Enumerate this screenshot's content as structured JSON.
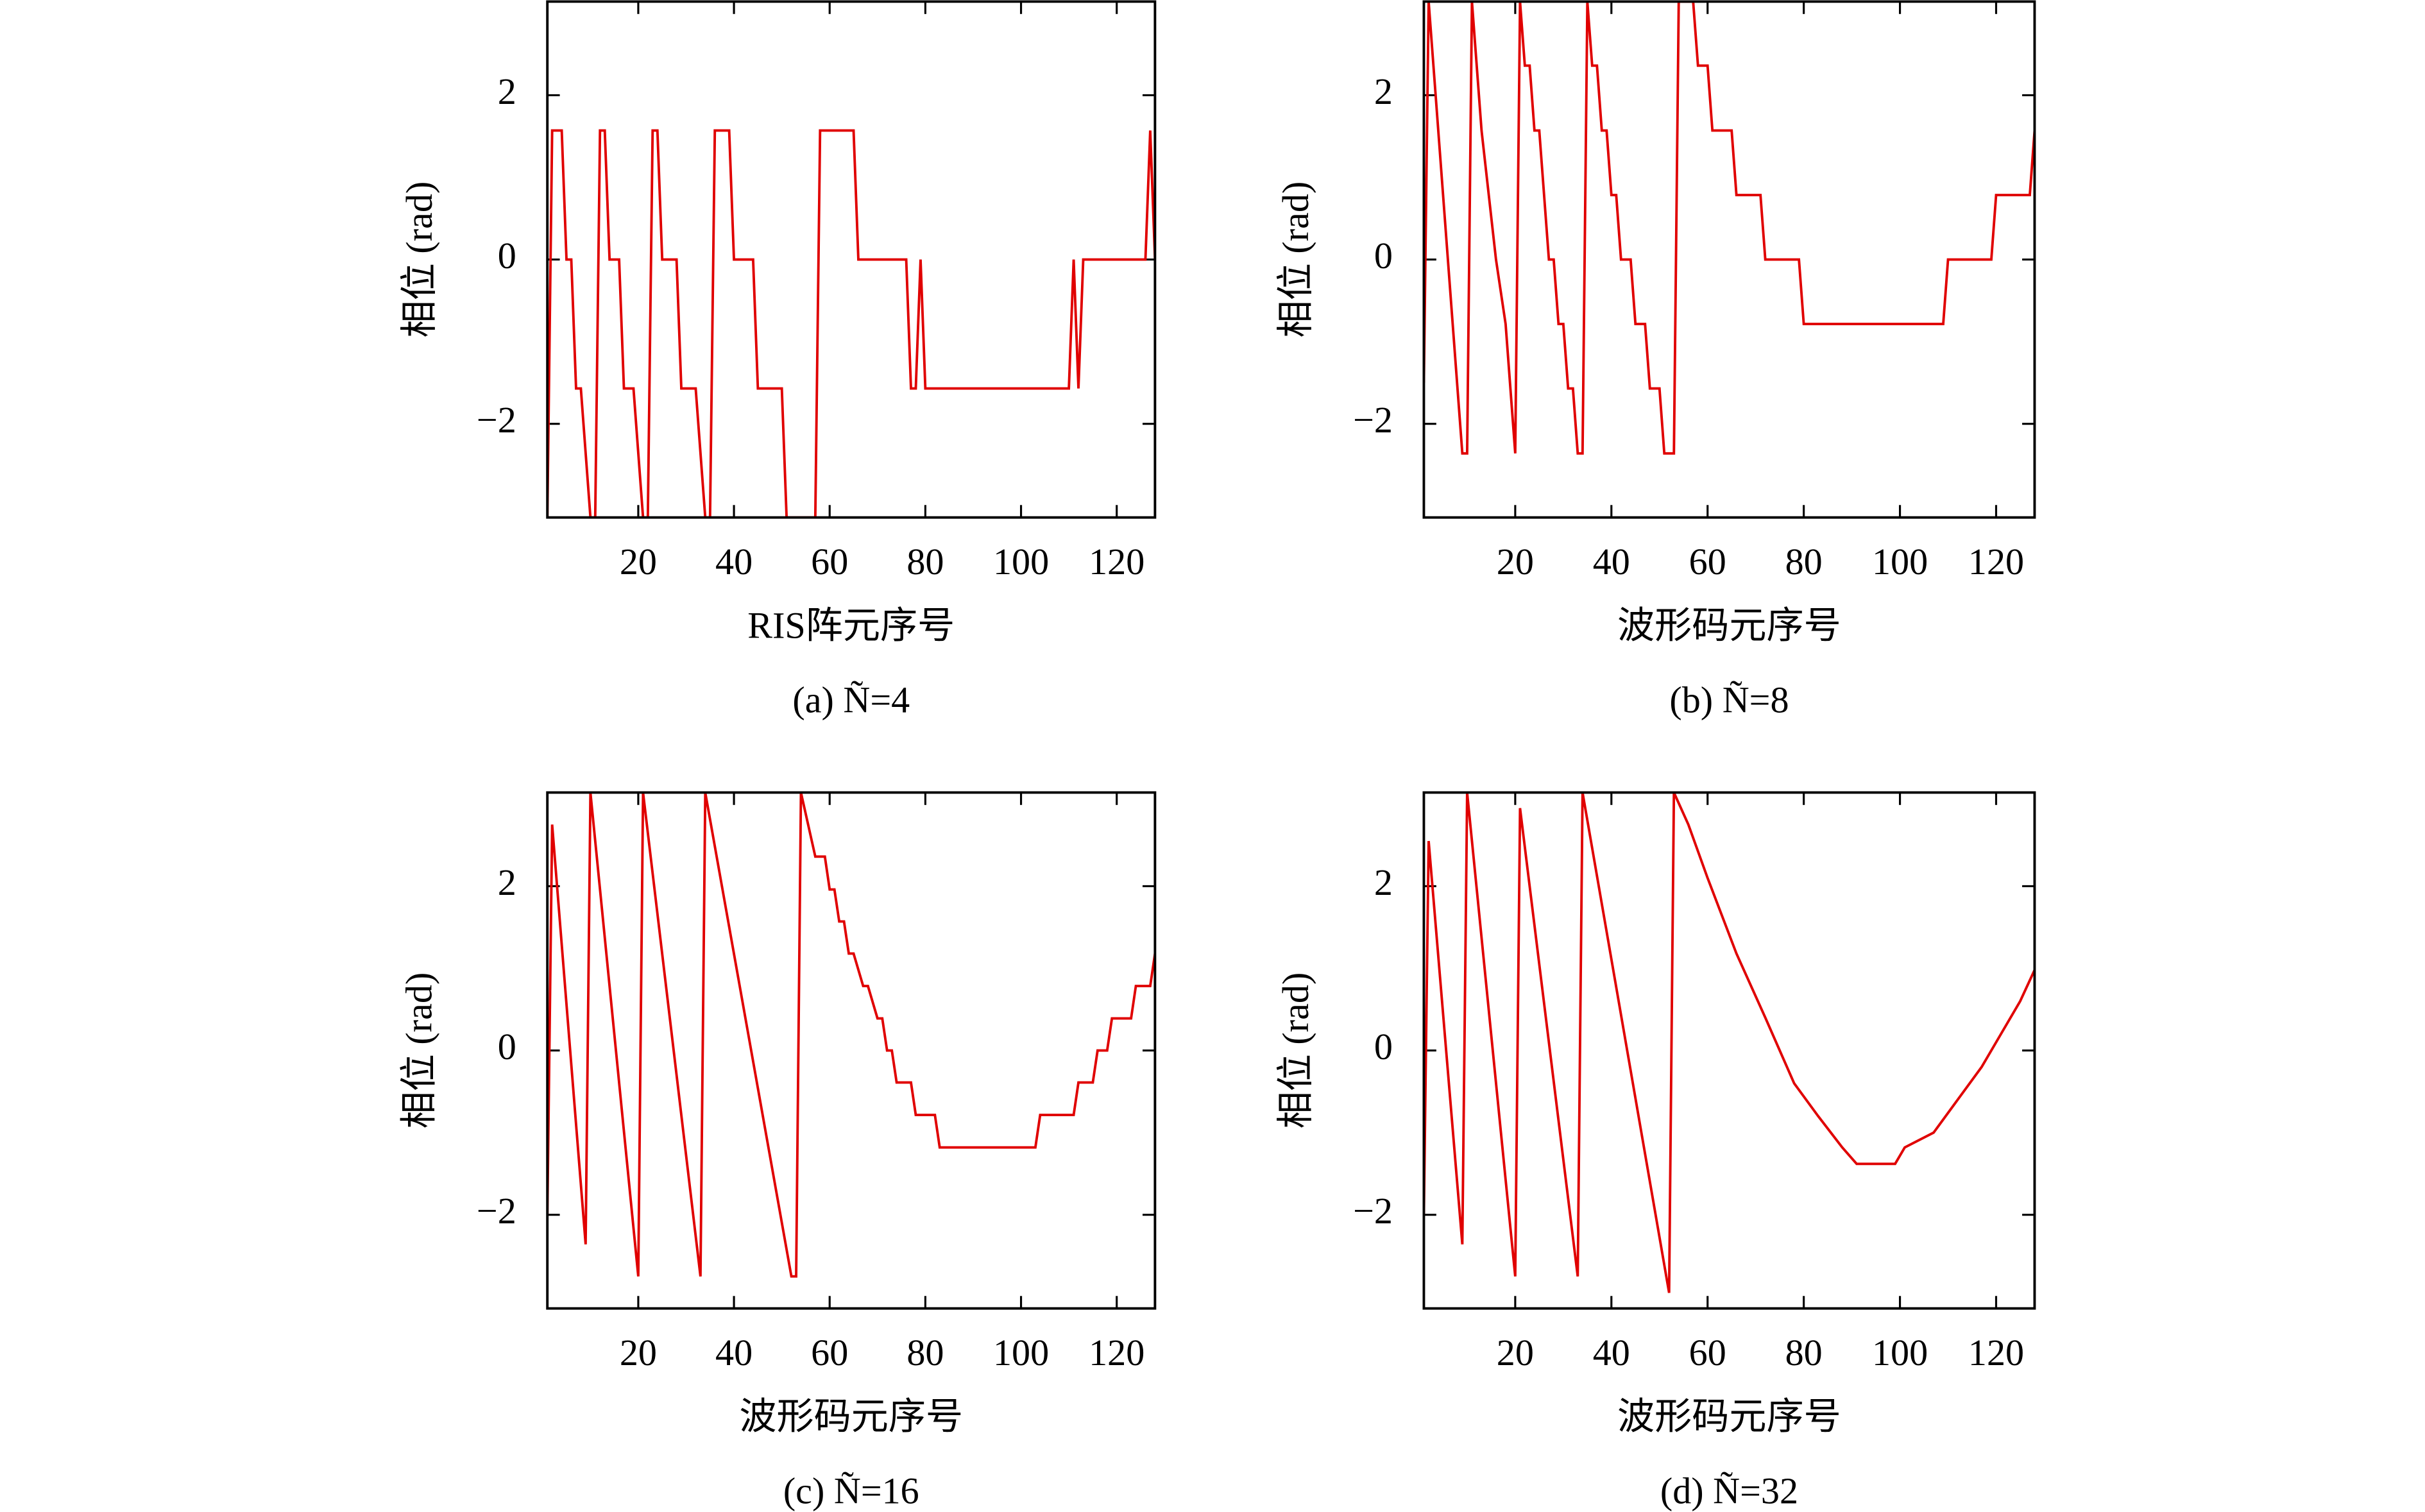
{
  "chart_data": [
    {
      "type": "line",
      "caption": "(a) Ñ=4",
      "xlabel": "RIS阵元序号",
      "ylabel": "相位 (rad)",
      "color": "#e00000",
      "x": [
        1,
        2,
        4,
        5,
        6,
        7,
        8,
        10,
        11,
        12,
        13,
        14,
        16,
        17,
        19,
        21,
        22,
        23,
        24,
        25,
        28,
        29,
        32,
        34,
        35,
        36,
        39,
        40,
        44,
        45,
        50,
        51,
        57,
        58,
        65,
        66,
        76,
        77,
        78,
        79,
        80,
        110,
        111,
        112,
        113,
        126,
        127,
        128
      ],
      "values": [
        -3.14,
        1.57,
        1.57,
        0,
        0,
        -1.57,
        -1.57,
        -3.14,
        -3.14,
        1.57,
        1.57,
        0,
        0,
        -1.57,
        -1.57,
        -3.14,
        -3.14,
        1.57,
        1.57,
        0,
        0,
        -1.57,
        -1.57,
        -3.14,
        -3.14,
        1.57,
        1.57,
        0,
        0,
        -1.57,
        -1.57,
        -3.14,
        -3.14,
        1.57,
        1.57,
        0,
        0,
        -1.57,
        -1.57,
        0,
        -1.57,
        -1.57,
        0,
        -1.57,
        0,
        0,
        1.57,
        0
      ],
      "xlim": [
        1,
        128
      ],
      "ylim": [
        -3.14,
        3.14
      ],
      "xticks": [
        20,
        40,
        60,
        80,
        100,
        120
      ],
      "yticks": [
        {
          "value": -2,
          "label": "−2"
        },
        0,
        2
      ]
    },
    {
      "type": "line",
      "caption": "(b) Ñ=8",
      "xlabel": "波形码元序号",
      "ylabel": "相位 (rad)",
      "color": "#e00000",
      "x": [
        1,
        2,
        9,
        10,
        11,
        13,
        16,
        18,
        20,
        21,
        22,
        23,
        24,
        25,
        27,
        28,
        29,
        30,
        31,
        32,
        33,
        34,
        35,
        36,
        37,
        38,
        39,
        40,
        41,
        42,
        44,
        45,
        47,
        48,
        50,
        51,
        53,
        54,
        57,
        58,
        60,
        61,
        65,
        66,
        71,
        72,
        79,
        80,
        109,
        110,
        119,
        120,
        127,
        128
      ],
      "values": [
        -1.5,
        3.14,
        -2.36,
        -2.36,
        3.14,
        1.57,
        0,
        -0.785,
        -2.36,
        3.14,
        2.36,
        2.36,
        1.57,
        1.57,
        0,
        0,
        -0.785,
        -0.785,
        -1.57,
        -1.57,
        -2.36,
        -2.36,
        3.14,
        2.36,
        2.36,
        1.57,
        1.57,
        0.785,
        0.785,
        0,
        0,
        -0.785,
        -0.785,
        -1.57,
        -1.57,
        -2.36,
        -2.36,
        3.14,
        3.14,
        2.36,
        2.36,
        1.57,
        1.57,
        0.785,
        0.785,
        0,
        0,
        -0.785,
        -0.785,
        0,
        0,
        0.785,
        0.785,
        1.57
      ],
      "xlim": [
        1,
        128
      ],
      "ylim": [
        -3.14,
        3.14
      ],
      "xticks": [
        20,
        40,
        60,
        80,
        100,
        120
      ],
      "yticks": [
        {
          "value": -2,
          "label": "−2"
        },
        0,
        2
      ]
    },
    {
      "type": "line",
      "caption": "(c) Ñ=16",
      "xlabel": "波形码元序号",
      "ylabel": "相位 (rad)",
      "color": "#e00000",
      "x": [
        1,
        2,
        9,
        10,
        20,
        21,
        33,
        34,
        52,
        53,
        54,
        57,
        59,
        60,
        61,
        62,
        63,
        64,
        65,
        67,
        68,
        70,
        71,
        72,
        73,
        74,
        77,
        78,
        82,
        83,
        103,
        104,
        111,
        112,
        115,
        116,
        118,
        119,
        123,
        124,
        127,
        128
      ],
      "values": [
        -2,
        2.75,
        -2.36,
        3.14,
        -2.75,
        3.14,
        -2.75,
        3.14,
        -2.75,
        -2.75,
        3.14,
        2.36,
        2.36,
        1.96,
        1.96,
        1.57,
        1.57,
        1.18,
        1.18,
        0.785,
        0.785,
        0.39,
        0.39,
        0,
        0,
        -0.39,
        -0.39,
        -0.785,
        -0.785,
        -1.18,
        -1.18,
        -0.785,
        -0.785,
        -0.39,
        -0.39,
        0,
        0,
        0.39,
        0.39,
        0.785,
        0.785,
        1.18
      ],
      "xlim": [
        1,
        128
      ],
      "ylim": [
        -3.14,
        3.14
      ],
      "xticks": [
        20,
        40,
        60,
        80,
        100,
        120
      ],
      "yticks": [
        {
          "value": -2,
          "label": "−2"
        },
        0,
        2
      ]
    },
    {
      "type": "line",
      "caption": "(d) Ñ=32",
      "xlabel": "波形码元序号",
      "ylabel": "相位 (rad)",
      "color": "#e00000",
      "x": [
        1,
        2,
        9,
        10,
        20,
        21,
        33,
        34,
        52,
        53,
        56,
        60,
        66,
        72,
        78,
        83,
        88,
        91,
        99,
        101,
        107,
        112,
        117,
        121,
        125,
        128
      ],
      "values": [
        -2,
        2.55,
        -2.36,
        3.14,
        -2.75,
        2.95,
        -2.75,
        3.14,
        -2.95,
        3.14,
        2.75,
        2.1,
        1.18,
        0.4,
        -0.4,
        -0.8,
        -1.18,
        -1.38,
        -1.38,
        -1.18,
        -1.0,
        -0.6,
        -0.2,
        0.2,
        0.6,
        0.98
      ],
      "xlim": [
        1,
        128
      ],
      "ylim": [
        -3.14,
        3.14
      ],
      "xticks": [
        20,
        40,
        60,
        80,
        100,
        120
      ],
      "yticks": [
        {
          "value": -2,
          "label": "−2"
        },
        0,
        2
      ]
    }
  ]
}
